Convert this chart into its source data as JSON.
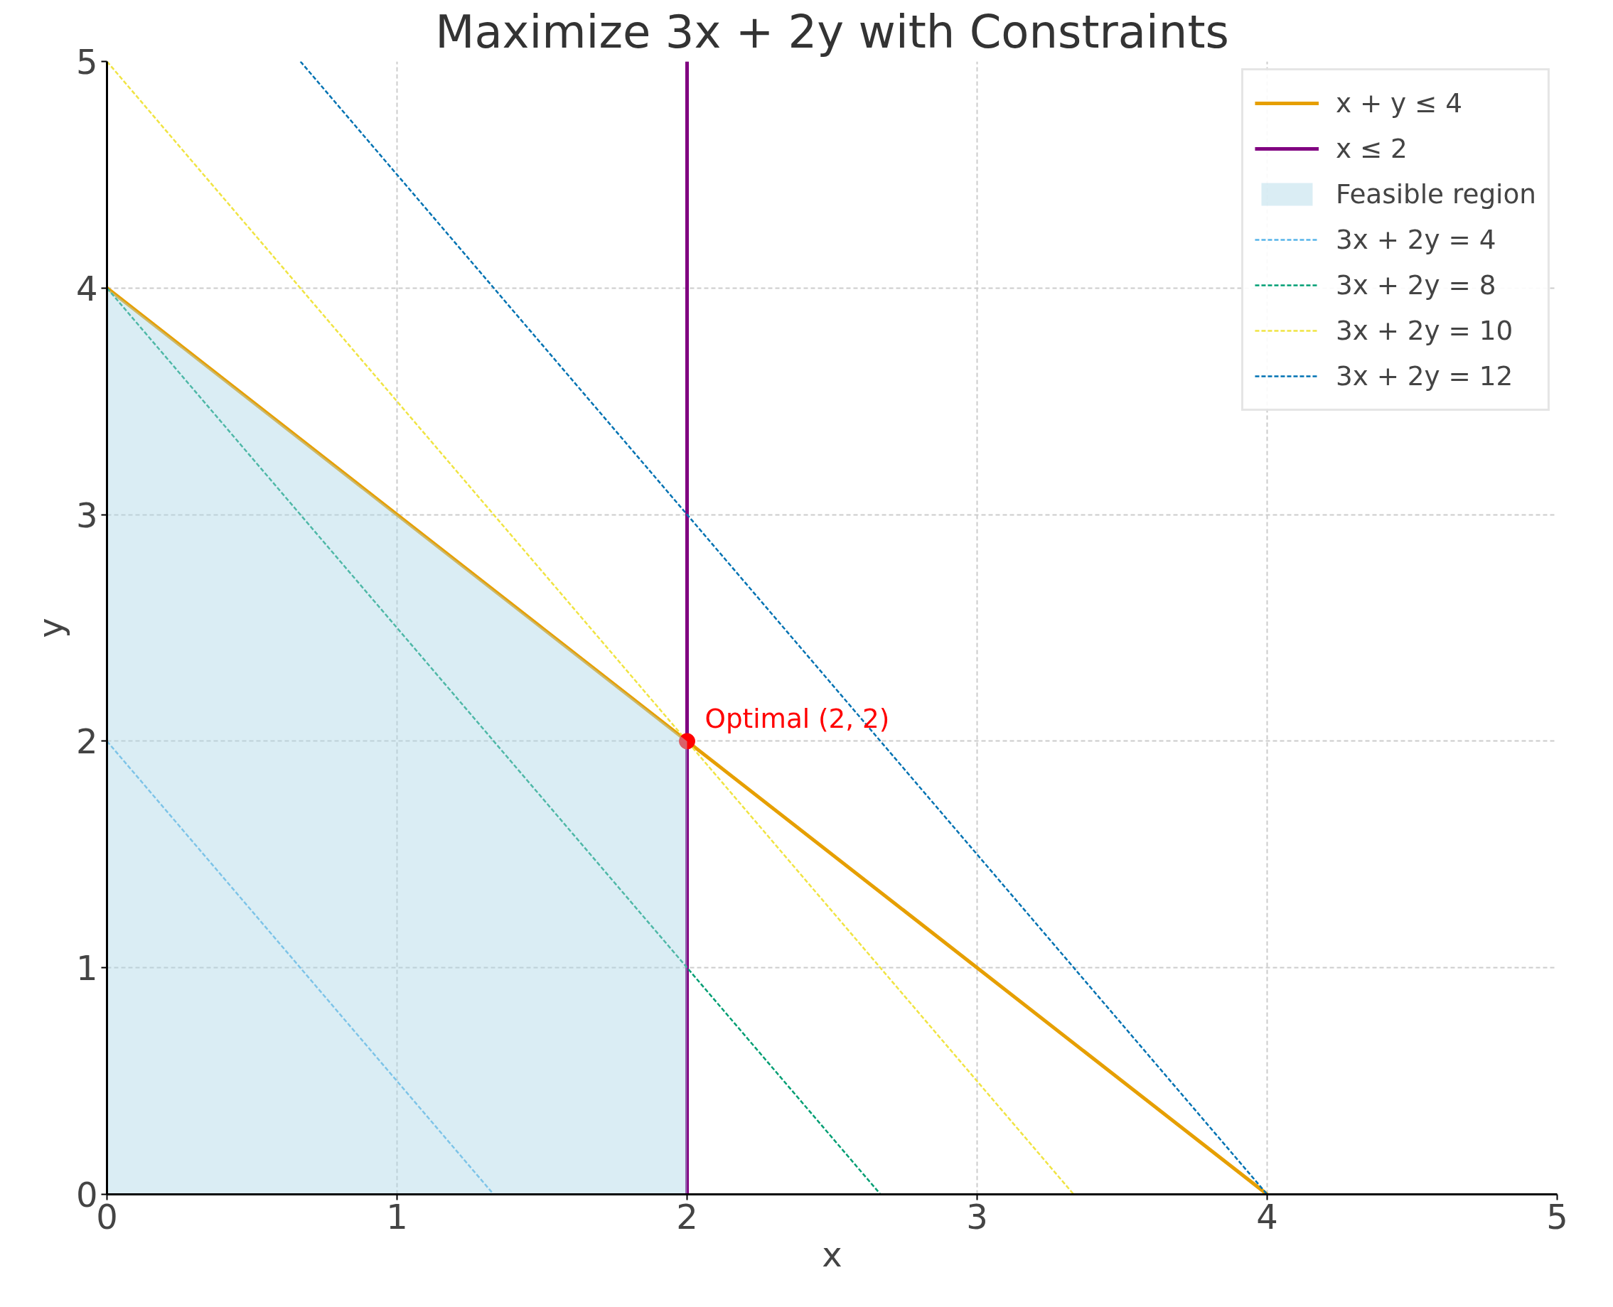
{
  "chart_data": {
    "type": "line",
    "title": "Maximize 3x + 2y with Constraints",
    "xlabel": "x",
    "ylabel": "y",
    "xlim": [
      0,
      5
    ],
    "ylim": [
      0,
      5
    ],
    "xticks": [
      0,
      1,
      2,
      3,
      4,
      5
    ],
    "yticks": [
      0,
      1,
      2,
      3,
      4,
      5
    ],
    "grid": true,
    "legend": "top right",
    "marker": "none",
    "series": [
      {
        "name": "x + y ≤ 4",
        "color": "#e69f00",
        "x": [
          0,
          4
        ],
        "values": [
          4,
          0
        ],
        "line_style": "solid"
      },
      {
        "name": "x ≤ 2",
        "color": "#800080",
        "x": [
          2,
          2
        ],
        "values": [
          0,
          5
        ],
        "line_style": "solid"
      },
      {
        "name": "Feasible region",
        "type": "area",
        "color": "#add8e6",
        "x": [
          0,
          2
        ],
        "values": [
          4,
          2
        ]
      },
      {
        "name": "3x + 2y = 4",
        "color": "#56b4e9",
        "x": [
          0,
          1.333
        ],
        "values": [
          2,
          0
        ],
        "line_style": "dashed"
      },
      {
        "name": "3x + 2y = 8",
        "color": "#009e73",
        "x": [
          0,
          2.667
        ],
        "values": [
          4,
          0
        ],
        "line_style": "dashed"
      },
      {
        "name": "3x + 2y = 10",
        "color": "#f0e442",
        "x": [
          0,
          3.333
        ],
        "values": [
          5,
          0
        ],
        "line_style": "dashed"
      },
      {
        "name": "3x + 2y = 12",
        "color": "#0072b2",
        "x": [
          0.667,
          4
        ],
        "values": [
          5,
          0
        ],
        "line_style": "dashed"
      },
      {
        "type": "scatter",
        "color": "#ff0000",
        "x": [
          2
        ],
        "values": [
          2
        ],
        "marker": "circle"
      }
    ],
    "annotations": [
      {
        "text": "Optimal (2, 2)",
        "x": 2,
        "y": 2
      }
    ]
  }
}
